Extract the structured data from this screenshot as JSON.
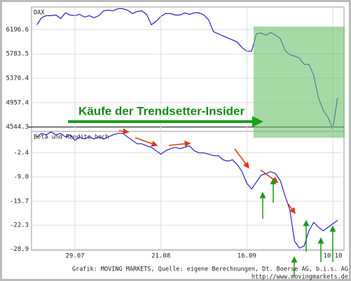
{
  "chart_data": [
    {
      "type": "line",
      "title": "DAX",
      "color": "#2323c8",
      "grid": true,
      "values": [
        6279,
        6397,
        6433,
        6433,
        6444,
        6385,
        6480,
        6444,
        6433,
        6456,
        6409,
        6433,
        6397,
        6433,
        6515,
        6527,
        6515,
        6551,
        6551,
        6527,
        6468,
        6503,
        6515,
        6456,
        6279,
        6338,
        6421,
        6468,
        6468,
        6444,
        6444,
        6480,
        6456,
        6480,
        6480,
        6444,
        6362,
        6161,
        6126,
        6090,
        6055,
        6020,
        5984,
        5890,
        5831,
        5831,
        6126,
        6138,
        6102,
        6149,
        6102,
        6043,
        5843,
        5772,
        5748,
        5713,
        5607,
        5607,
        5418,
        5040,
        4827,
        4709,
        4509,
        5040
      ],
      "ylim": [
        4470,
        6580
      ],
      "yticks": [
        4544.3,
        4957.4,
        5370.4,
        5783.5,
        6196.6
      ],
      "annotations": [
        "Käufe der Trendsetter-Insider"
      ]
    },
    {
      "type": "line",
      "title": "Beta und Rendite hoch",
      "color": "#2323c8",
      "grid": true,
      "categories": [
        null,
        null,
        null,
        null,
        null,
        null,
        null,
        null,
        "29.07",
        null,
        null,
        null,
        null,
        null,
        null,
        null,
        null,
        null,
        null,
        null,
        null,
        null,
        null,
        null,
        null,
        null,
        "21.08",
        null,
        null,
        null,
        null,
        null,
        null,
        null,
        null,
        null,
        null,
        null,
        null,
        null,
        null,
        null,
        null,
        null,
        "16.09",
        null,
        null,
        null,
        null,
        null,
        null,
        null,
        null,
        null,
        null,
        null,
        null,
        null,
        null,
        null,
        null,
        null,
        "10.10",
        null
      ],
      "values": [
        2.0,
        2.96,
        2.57,
        3.34,
        2.57,
        2.96,
        2.0,
        2.57,
        1.04,
        2.0,
        1.43,
        2.0,
        1.43,
        2.0,
        1.43,
        2.0,
        2.57,
        2.96,
        2.96,
        2.0,
        1.04,
        0.09,
        0.09,
        -0.49,
        -0.87,
        -1.83,
        -2.78,
        -1.83,
        -1.25,
        -0.87,
        -1.25,
        -0.87,
        -0.49,
        -1.83,
        -2.4,
        -2.4,
        -2.78,
        -3.17,
        -3.17,
        -4.31,
        -4.7,
        -4.31,
        -5.65,
        -7.57,
        -10.82,
        -12.35,
        -10.43,
        -8.52,
        -8.14,
        -7.57,
        -8.14,
        -10.05,
        -14.26,
        -18.09,
        -26.69,
        -28.61,
        -28.03,
        -23.83,
        -21.53,
        -22.87,
        -23.83,
        -22.87,
        -21.91,
        -20.96
      ],
      "ylim": [
        -29.2,
        3.5
      ],
      "yticks": [
        -2.4,
        {
          "value": -9,
          "label": "-9.0"
        },
        -15.7,
        -22.3,
        -28.9
      ]
    }
  ],
  "footer": {
    "credit": "Grafik: MOVING MARKETS, Quelle: eigene Berechnungen, Dt. Boerse AG, b.i.s. AG",
    "url": "http://www.movingmarkets.de"
  }
}
